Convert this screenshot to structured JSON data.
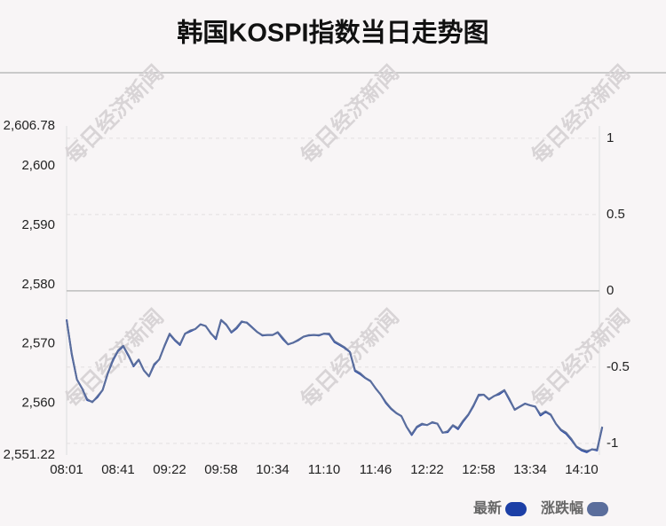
{
  "chart_data": {
    "type": "line",
    "title": "韩国KOSPI指数当日走势图",
    "watermark": "每日经济新闻",
    "categories": [
      "08:01",
      null,
      null,
      null,
      null,
      null,
      null,
      null,
      null,
      null,
      "08:41",
      null,
      null,
      null,
      null,
      null,
      null,
      null,
      null,
      null,
      "09:22",
      null,
      null,
      null,
      null,
      null,
      null,
      null,
      null,
      null,
      "09:58",
      null,
      null,
      null,
      null,
      null,
      null,
      null,
      null,
      null,
      "10:34",
      null,
      null,
      null,
      null,
      null,
      null,
      null,
      null,
      null,
      "11:10",
      null,
      null,
      null,
      null,
      null,
      null,
      null,
      null,
      null,
      "11:46",
      null,
      null,
      null,
      null,
      null,
      null,
      null,
      null,
      null,
      "12:22",
      null,
      null,
      null,
      null,
      null,
      null,
      null,
      null,
      null,
      "12:58",
      null,
      null,
      null,
      null,
      null,
      null,
      null,
      null,
      null,
      "13:34",
      null,
      null,
      null,
      null,
      null,
      null,
      null,
      null,
      null,
      "14:10",
      null,
      null,
      null,
      null
    ],
    "series": [
      {
        "name": "最新",
        "color": "#1c3fa6",
        "values": [
          2574.1,
          2568.2,
          2564.0,
          2562.5,
          2560.5,
          2560.2,
          2561.0,
          2562.2,
          2565.0,
          2567.2,
          2568.8,
          2569.6,
          2568.0,
          2566.2,
          2567.3,
          2565.5,
          2564.5,
          2566.4,
          2567.4,
          2569.6,
          2571.6,
          2570.6,
          2569.8,
          2571.7,
          2572.1,
          2572.5,
          2573.3,
          2573.0,
          2571.8,
          2570.8,
          2574.0,
          2573.2,
          2571.9,
          2572.6,
          2573.7,
          2573.6,
          2572.8,
          2572.0,
          2571.4,
          2571.5,
          2571.5,
          2571.9,
          2570.8,
          2569.9,
          2570.2,
          2570.6,
          2571.2,
          2571.4,
          2571.5,
          2571.4,
          2571.7,
          2571.6,
          2570.3,
          2569.8,
          2569.3,
          2568.6,
          2565.4,
          2564.9,
          2564.2,
          2563.7,
          2562.5,
          2561.4,
          2560.0,
          2559.0,
          2558.3,
          2557.8,
          2556.0,
          2554.6,
          2555.9,
          2556.4,
          2556.3,
          2556.7,
          2556.5,
          2555.0,
          2555.1,
          2556.2,
          2555.6,
          2556.9,
          2558.0,
          2559.5,
          2561.3,
          2561.4,
          2560.6,
          2561.2,
          2561.5,
          2562.1,
          2560.5,
          2558.9,
          2559.4,
          2559.9,
          2559.6,
          2559.4,
          2557.9,
          2558.5,
          2558.0,
          2556.5,
          2555.4,
          2554.8,
          2553.8,
          2552.6,
          2552.0,
          2551.7,
          2552.2,
          2552.0,
          2555.9
        ]
      },
      {
        "name": "涨跌幅",
        "color": "#5b6e9c",
        "axis": "y2",
        "values": [
          -0.19,
          -0.41,
          -0.58,
          -0.64,
          -0.71,
          -0.73,
          -0.69,
          -0.65,
          -0.54,
          -0.45,
          -0.39,
          -0.36,
          -0.42,
          -0.49,
          -0.45,
          -0.52,
          -0.56,
          -0.48,
          -0.45,
          -0.36,
          -0.28,
          -0.32,
          -0.35,
          -0.28,
          -0.26,
          -0.25,
          -0.22,
          -0.23,
          -0.28,
          -0.31,
          -0.19,
          -0.22,
          -0.27,
          -0.24,
          -0.2,
          -0.21,
          -0.24,
          -0.27,
          -0.29,
          -0.29,
          -0.29,
          -0.27,
          -0.31,
          -0.35,
          -0.34,
          -0.32,
          -0.3,
          -0.29,
          -0.29,
          -0.29,
          -0.28,
          -0.28,
          -0.33,
          -0.35,
          -0.37,
          -0.4,
          -0.52,
          -0.54,
          -0.57,
          -0.59,
          -0.64,
          -0.68,
          -0.73,
          -0.77,
          -0.8,
          -0.82,
          -0.89,
          -0.94,
          -0.89,
          -0.87,
          -0.88,
          -0.86,
          -0.87,
          -0.93,
          -0.92,
          -0.88,
          -0.9,
          -0.85,
          -0.81,
          -0.75,
          -0.68,
          -0.68,
          -0.71,
          -0.69,
          -0.67,
          -0.65,
          -0.71,
          -0.78,
          -0.76,
          -0.74,
          -0.75,
          -0.76,
          -0.81,
          -0.79,
          -0.81,
          -0.87,
          -0.91,
          -0.93,
          -0.97,
          -1.02,
          -1.04,
          -1.05,
          -1.04,
          -1.04,
          -0.89
        ]
      }
    ],
    "ylim": [
      2551.22,
      2606.78
    ],
    "yticks": [
      {
        "value": 2551.22,
        "label": "2,551.22"
      },
      {
        "value": 2560,
        "label": "2,560"
      },
      {
        "value": 2570,
        "label": "2,570"
      },
      {
        "value": 2580,
        "label": "2,580"
      },
      {
        "value": 2590,
        "label": "2,590"
      },
      {
        "value": 2600,
        "label": "2,600"
      },
      {
        "value": 2606.78,
        "label": "2,606.78"
      }
    ],
    "y2lim": [
      -1.076,
      1.081
    ],
    "y2ticks": [
      -1,
      -0.5,
      0,
      0.5,
      1
    ],
    "grid": true
  }
}
